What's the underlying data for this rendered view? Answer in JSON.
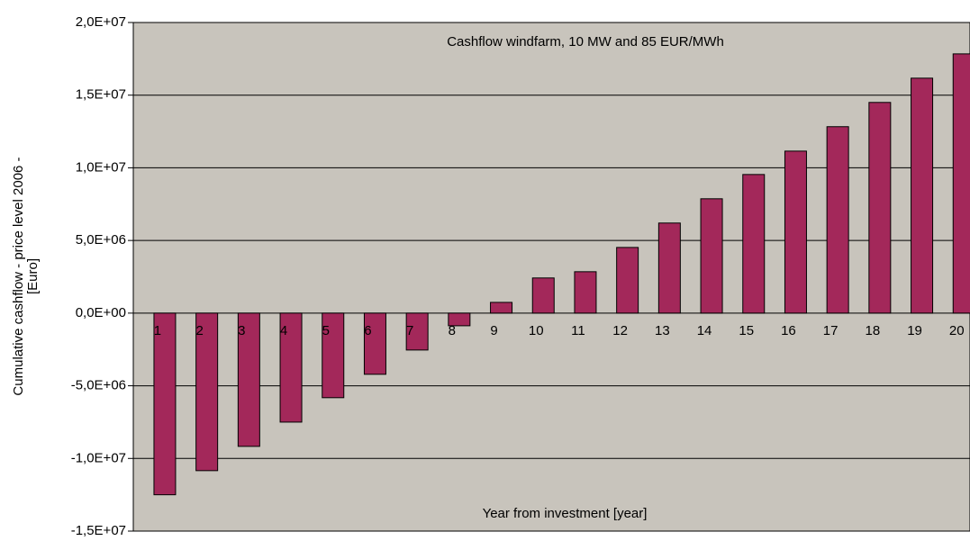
{
  "chart_data": {
    "type": "bar",
    "title": "Cashflow windfarm, 10 MW and 85 EUR/MWh",
    "xlabel": "Year from investment [year]",
    "ylabel": [
      "Cumulative cashflow - price level 2006 -",
      "[Euro]"
    ],
    "categories": [
      "1",
      "2",
      "3",
      "4",
      "5",
      "6",
      "7",
      "8",
      "9",
      "10",
      "11",
      "12",
      "13",
      "14",
      "15",
      "16",
      "17",
      "18",
      "19",
      "20"
    ],
    "values": [
      -12500000,
      -10840000,
      -9170000,
      -7500000,
      -5820000,
      -4210000,
      -2540000,
      -870000,
      740000,
      2420000,
      2850000,
      4520000,
      6200000,
      7870000,
      9540000,
      11150000,
      12830000,
      14500000,
      16170000,
      17840000
    ],
    "color": "#a3285a",
    "ylim": [
      -15000000,
      20000000
    ],
    "yticks": [
      {
        "value": -15000000,
        "label": "-1,5E+07"
      },
      {
        "value": -10000000,
        "label": "-1,0E+07"
      },
      {
        "value": -5000000,
        "label": "-5,0E+06"
      },
      {
        "value": 0,
        "label": "0,0E+00"
      },
      {
        "value": 5000000,
        "label": "5,0E+06"
      },
      {
        "value": 10000000,
        "label": "1,0E+07"
      },
      {
        "value": 15000000,
        "label": "1,5E+07"
      },
      {
        "value": 20000000,
        "label": "2,0E+07"
      }
    ],
    "grid": true
  }
}
